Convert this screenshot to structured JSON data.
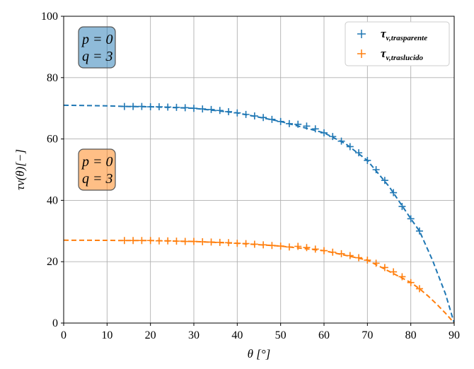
{
  "chart_data": {
    "type": "scatter",
    "xlabel": "θ [°]",
    "ylabel": "τv(θ)[−]",
    "xlim": [
      0,
      90
    ],
    "ylim": [
      0,
      100
    ],
    "xticks": [
      0,
      10,
      20,
      30,
      40,
      50,
      60,
      70,
      80,
      90
    ],
    "yticks": [
      0,
      20,
      40,
      60,
      80,
      100
    ],
    "grid": true,
    "legend_position": "top-right",
    "colors": {
      "blue": "#1f77b4",
      "orange": "#ff7f0e"
    },
    "series": [
      {
        "name": "τv,trasparente",
        "name_main": "τ",
        "name_sub": "v,trasparente",
        "marker": "+",
        "color": "#1f77b4",
        "x": [
          14,
          16,
          18,
          20,
          22,
          24,
          26,
          28,
          30,
          32,
          34,
          36,
          38,
          40,
          42,
          44,
          46,
          48,
          50,
          52,
          54,
          56,
          58,
          60,
          62,
          64,
          66,
          68,
          70,
          72,
          74,
          76,
          78,
          80,
          82
        ],
        "y": [
          70.6,
          70.6,
          70.6,
          70.5,
          70.5,
          70.4,
          70.3,
          70.2,
          70.0,
          69.8,
          69.6,
          69.3,
          68.9,
          68.5,
          68.0,
          67.5,
          67.0,
          66.4,
          65.7,
          65.0,
          64.8,
          64.2,
          63.3,
          62.0,
          60.8,
          59.3,
          57.5,
          55.5,
          53.0,
          50.0,
          46.5,
          42.5,
          38.0,
          34.0,
          30.0
        ]
      },
      {
        "name": "τv,traslucido",
        "name_main": "τ",
        "name_sub": "v,traslucido",
        "marker": "+",
        "color": "#ff7f0e",
        "x": [
          14,
          16,
          18,
          20,
          22,
          24,
          26,
          28,
          30,
          32,
          34,
          36,
          38,
          40,
          42,
          44,
          46,
          48,
          50,
          52,
          54,
          56,
          58,
          60,
          62,
          64,
          66,
          68,
          70,
          72,
          74,
          76,
          78,
          80,
          82
        ],
        "y": [
          26.9,
          26.9,
          26.9,
          26.9,
          26.8,
          26.8,
          26.7,
          26.6,
          26.6,
          26.5,
          26.4,
          26.3,
          26.2,
          26.0,
          25.9,
          25.7,
          25.5,
          25.3,
          25.1,
          24.8,
          25.0,
          24.6,
          24.1,
          23.6,
          23.1,
          22.6,
          22.0,
          21.3,
          20.5,
          19.5,
          18.1,
          16.7,
          15.1,
          13.2,
          11.2
        ]
      }
    ],
    "fit_curves": [
      {
        "color": "#1f77b4",
        "style": "dashed",
        "x": [
          0,
          10,
          14,
          20,
          30,
          40,
          50,
          60,
          65,
          70,
          75,
          80,
          82,
          85,
          88,
          90
        ],
        "y": [
          71.0,
          70.8,
          70.6,
          70.5,
          70.0,
          68.5,
          65.7,
          62.0,
          58.4,
          53.0,
          44.5,
          34.0,
          30.0,
          20.5,
          9.5,
          0
        ]
      },
      {
        "color": "#ff7f0e",
        "style": "dashed",
        "x": [
          0,
          10,
          14,
          20,
          30,
          40,
          50,
          60,
          70,
          80,
          82,
          84,
          86,
          88,
          90
        ],
        "y": [
          27.0,
          26.95,
          26.9,
          26.9,
          26.6,
          26.0,
          25.1,
          23.6,
          20.5,
          13.2,
          11.2,
          8.8,
          6.1,
          3.2,
          0
        ]
      }
    ],
    "annotations": [
      {
        "line1": "p = 0",
        "line2": "q = 3",
        "color": "#1f77b4",
        "position": "top-left"
      },
      {
        "line1": "p = 0",
        "line2": "q = 3",
        "color": "#ff7f0e",
        "position": "middle-left"
      }
    ]
  }
}
